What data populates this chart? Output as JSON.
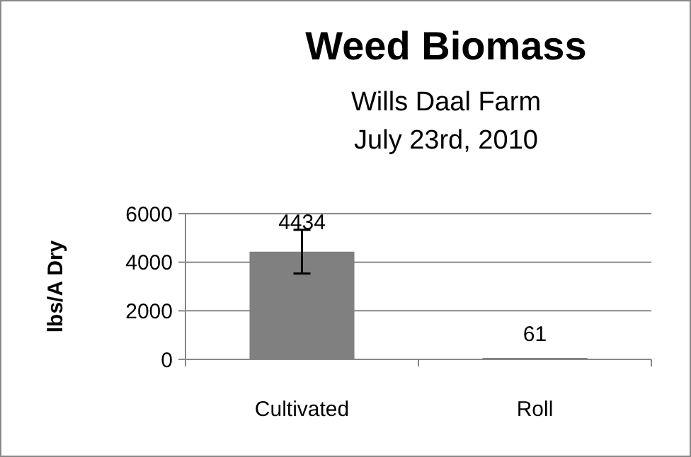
{
  "chart_data": {
    "type": "bar",
    "title": "Weed Biomass",
    "subtitle": "Wills Daal Farm\nJuly 23rd, 2010",
    "ylabel": "lbs/A Dry",
    "categories": [
      "Cultivated",
      "Roll"
    ],
    "values": [
      4434,
      61
    ],
    "errors": [
      900,
      null
    ],
    "color": "#808080",
    "ylim": [
      0,
      6000
    ],
    "yticks": [
      0,
      2000,
      4000,
      6000
    ],
    "grid": "y",
    "data_labels": true
  }
}
